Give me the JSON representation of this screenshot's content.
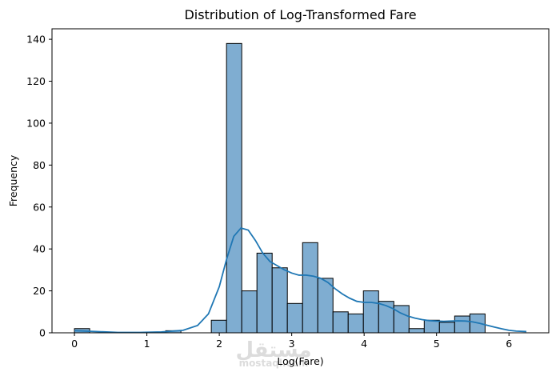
{
  "chart_data": {
    "type": "bar",
    "title": "Distribution of Log-Transformed Fare",
    "xlabel": "Log(Fare)",
    "ylabel": "Frequency",
    "xlim": [
      -0.31,
      6.55
    ],
    "ylim": [
      0,
      145
    ],
    "xticks": [
      0,
      1,
      2,
      3,
      4,
      5,
      6
    ],
    "yticks": [
      0,
      20,
      40,
      60,
      80,
      100,
      120,
      140
    ],
    "grid": false,
    "bins": [
      {
        "x0": 0.0,
        "x1": 0.21,
        "count": 2
      },
      {
        "x0": 0.21,
        "x1": 0.42,
        "count": 0
      },
      {
        "x0": 0.42,
        "x1": 0.63,
        "count": 0
      },
      {
        "x0": 0.63,
        "x1": 0.84,
        "count": 0
      },
      {
        "x0": 0.84,
        "x1": 1.05,
        "count": 0
      },
      {
        "x0": 1.05,
        "x1": 1.26,
        "count": 0
      },
      {
        "x0": 1.26,
        "x1": 1.47,
        "count": 1
      },
      {
        "x0": 1.47,
        "x1": 1.68,
        "count": 0
      },
      {
        "x0": 1.68,
        "x1": 1.89,
        "count": 0
      },
      {
        "x0": 1.89,
        "x1": 2.1,
        "count": 6
      },
      {
        "x0": 2.1,
        "x1": 2.31,
        "count": 138
      },
      {
        "x0": 2.31,
        "x1": 2.52,
        "count": 20
      },
      {
        "x0": 2.52,
        "x1": 2.73,
        "count": 38
      },
      {
        "x0": 2.73,
        "x1": 2.94,
        "count": 31
      },
      {
        "x0": 2.94,
        "x1": 3.15,
        "count": 14
      },
      {
        "x0": 3.15,
        "x1": 3.36,
        "count": 43
      },
      {
        "x0": 3.36,
        "x1": 3.57,
        "count": 26
      },
      {
        "x0": 3.57,
        "x1": 3.78,
        "count": 10
      },
      {
        "x0": 3.78,
        "x1": 3.99,
        "count": 9
      },
      {
        "x0": 3.99,
        "x1": 4.2,
        "count": 20
      },
      {
        "x0": 4.2,
        "x1": 4.41,
        "count": 15
      },
      {
        "x0": 4.41,
        "x1": 4.62,
        "count": 13
      },
      {
        "x0": 4.62,
        "x1": 4.83,
        "count": 2
      },
      {
        "x0": 4.83,
        "x1": 5.04,
        "count": 6
      },
      {
        "x0": 5.04,
        "x1": 5.25,
        "count": 5
      },
      {
        "x0": 5.25,
        "x1": 5.46,
        "count": 8
      },
      {
        "x0": 5.46,
        "x1": 5.67,
        "count": 9
      }
    ],
    "kde": {
      "x": [
        0.0,
        0.3,
        0.6,
        0.9,
        1.2,
        1.5,
        1.7,
        1.85,
        2.0,
        2.1,
        2.2,
        2.3,
        2.4,
        2.5,
        2.6,
        2.7,
        2.8,
        2.9,
        3.0,
        3.1,
        3.2,
        3.3,
        3.4,
        3.5,
        3.6,
        3.7,
        3.8,
        3.9,
        4.0,
        4.1,
        4.2,
        4.3,
        4.4,
        4.5,
        4.6,
        4.7,
        4.8,
        4.9,
        5.0,
        5.1,
        5.2,
        5.3,
        5.4,
        5.5,
        5.6,
        5.7,
        5.8,
        5.9,
        6.0,
        6.1,
        6.24
      ],
      "y": [
        1.0,
        0.6,
        0.2,
        0.2,
        0.4,
        1.2,
        3.5,
        9.0,
        22.0,
        35.0,
        46.0,
        50.0,
        49.0,
        44.0,
        38.0,
        34.0,
        32.0,
        30.0,
        28.5,
        27.5,
        27.5,
        27.0,
        26.0,
        24.0,
        21.0,
        18.5,
        16.5,
        15.0,
        14.5,
        14.5,
        14.0,
        13.0,
        11.5,
        9.5,
        8.0,
        7.0,
        6.3,
        5.8,
        5.6,
        5.5,
        5.6,
        5.7,
        5.6,
        5.2,
        4.5,
        3.6,
        2.7,
        1.9,
        1.2,
        0.8,
        0.6
      ]
    },
    "bar_color": "#7fadd1",
    "bar_edge_color": "#000000",
    "line_color": "#1f77b4"
  },
  "watermark": {
    "main": "مستقل",
    "sub": "mostaql.com"
  }
}
